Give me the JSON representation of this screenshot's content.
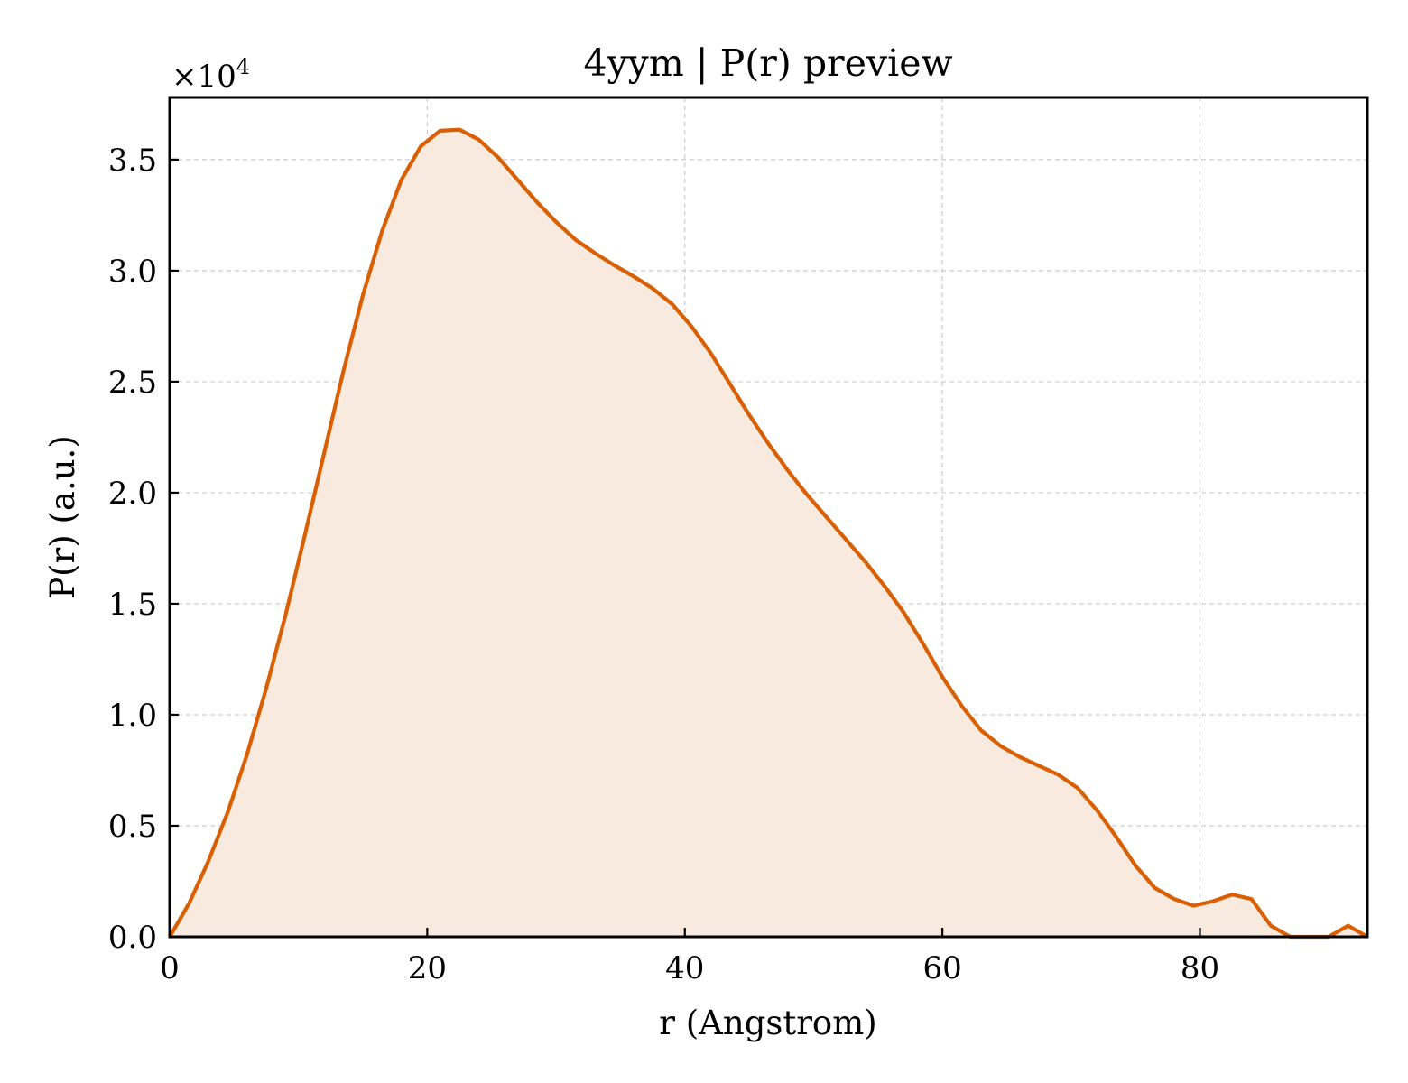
{
  "chart_data": {
    "type": "area",
    "title": "4yym | P(r) preview",
    "xlabel": "r (Angstrom)",
    "ylabel": "P(r) (a.u.)",
    "y_multiplier": "×10",
    "y_multiplier_exp": "4",
    "xlim": [
      0,
      93
    ],
    "ylim": [
      0,
      3.78
    ],
    "xticks": [
      0,
      20,
      40,
      60,
      80
    ],
    "xtick_labels": [
      "0",
      "20",
      "40",
      "60",
      "80"
    ],
    "yticks": [
      0,
      0.5,
      1.0,
      1.5,
      2.0,
      2.5,
      3.0,
      3.5
    ],
    "ytick_labels": [
      "0.0",
      "0.5",
      "1.0",
      "1.5",
      "2.0",
      "2.5",
      "3.0",
      "3.5"
    ],
    "grid": true,
    "line_color": "#d95f02",
    "fill_color": "#f9eadf",
    "series": [
      {
        "x": [
          0,
          1.5,
          3,
          4.5,
          6,
          7.5,
          9,
          10.5,
          12,
          13.5,
          15,
          16.5,
          18,
          19.5,
          21,
          22.5,
          24,
          25.5,
          27,
          28.5,
          30,
          31.5,
          33,
          34.5,
          36,
          37.5,
          39,
          40.5,
          42,
          43.5,
          45,
          46.5,
          48,
          49.5,
          51,
          52.5,
          54,
          55.5,
          57,
          58.5,
          60,
          61.5,
          63,
          64.5,
          66,
          67.5,
          69,
          70.5,
          72,
          73.5,
          75,
          76.5,
          78,
          79.5,
          81,
          82.5,
          84,
          85.5,
          87,
          88.5,
          90,
          91.5,
          93
        ],
        "y": [
          0.0,
          0.15,
          0.34,
          0.56,
          0.82,
          1.12,
          1.45,
          1.81,
          2.18,
          2.55,
          2.89,
          3.18,
          3.41,
          3.56,
          3.63,
          3.635,
          3.59,
          3.51,
          3.41,
          3.31,
          3.22,
          3.14,
          3.08,
          3.025,
          2.975,
          2.92,
          2.85,
          2.75,
          2.63,
          2.49,
          2.35,
          2.22,
          2.1,
          1.99,
          1.89,
          1.79,
          1.69,
          1.58,
          1.46,
          1.32,
          1.17,
          1.04,
          0.93,
          0.86,
          0.81,
          0.77,
          0.73,
          0.67,
          0.57,
          0.45,
          0.32,
          0.22,
          0.17,
          0.14,
          0.16,
          0.19,
          0.17,
          0.05,
          0.0,
          0.0,
          0.0,
          0.05,
          0.0
        ]
      }
    ]
  }
}
